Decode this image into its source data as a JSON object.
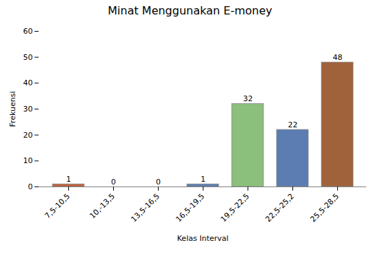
{
  "chart_data": {
    "type": "bar",
    "title": "Minat Menggunakan E-money",
    "xlabel": "Kelas Interval",
    "ylabel": "Frekuensi",
    "categories": [
      "7,5-10,5",
      "10,-13,5",
      "13,5-16,5",
      "16,5-19,5",
      "19,5-22,5",
      "22,5-25,2",
      "25,5-28,5"
    ],
    "values": [
      1,
      0,
      0,
      1,
      32,
      22,
      48
    ],
    "colors": [
      "#c0603a",
      "#c0603a",
      "#c0603a",
      "#5b7db1",
      "#8bbf7c",
      "#5b7db1",
      "#a0623a"
    ],
    "ylim": [
      0,
      60
    ],
    "yticks": [
      0,
      10,
      20,
      30,
      40,
      50,
      60
    ],
    "grid": false,
    "data_labels": true
  }
}
